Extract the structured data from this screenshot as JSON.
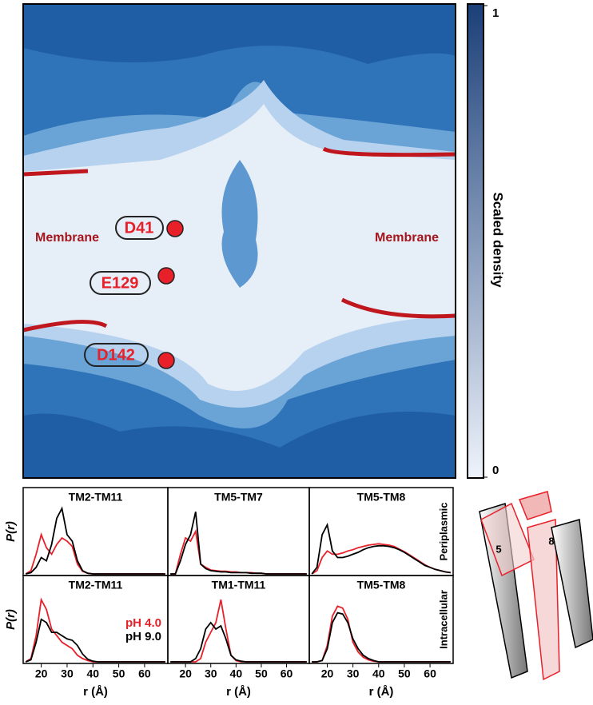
{
  "chart_data": [
    {
      "type": "heatmap",
      "annotations": [
        "Membrane",
        "Membrane",
        "D41",
        "E129",
        "D142"
      ],
      "colorbar": {
        "label": "Scaled density",
        "ylim": [
          0,
          1
        ],
        "yticks": [
          0,
          1
        ],
        "colors": [
          "#eef3fb",
          "#1b3f78"
        ]
      }
    },
    {
      "type": "line",
      "title": "TM2-TM11",
      "ylabel": "P(r)",
      "x": [
        14,
        16,
        18,
        20,
        22,
        24,
        26,
        28,
        30,
        32,
        34,
        36,
        38,
        40,
        42,
        44,
        46,
        48,
        50,
        52,
        54,
        56,
        58,
        60,
        62,
        64,
        66,
        68
      ],
      "xlim": [
        13,
        69
      ],
      "ylim": [
        0,
        1.05
      ],
      "series": [
        {
          "color": "#e8202a",
          "values": [
            0,
            0.05,
            0.3,
            0.6,
            0.4,
            0.3,
            0.45,
            0.55,
            0.5,
            0.42,
            0.15,
            0.04,
            0.01,
            0,
            0,
            0,
            0,
            0,
            0,
            0,
            0,
            0,
            0,
            0,
            0,
            0,
            0,
            0
          ]
        },
        {
          "color": "#000000",
          "values": [
            0,
            0.02,
            0.1,
            0.25,
            0.2,
            0.45,
            0.85,
            1.0,
            0.6,
            0.5,
            0.2,
            0.05,
            0.01,
            0,
            0,
            0,
            0,
            0,
            0,
            0,
            0,
            0,
            0,
            0,
            0,
            0,
            0,
            0
          ]
        }
      ]
    },
    {
      "type": "line",
      "title": "TM5-TM7",
      "x": [
        14,
        16,
        18,
        20,
        22,
        24,
        26,
        28,
        30,
        32,
        34,
        36,
        38,
        40,
        42,
        44,
        46,
        48,
        50,
        52,
        54,
        56,
        58,
        60,
        62,
        64,
        66,
        68
      ],
      "xlim": [
        13,
        69
      ],
      "ylim": [
        0,
        1.05
      ],
      "series": [
        {
          "color": "#e8202a",
          "values": [
            0,
            0,
            0.3,
            0.55,
            0.5,
            0.65,
            0.15,
            0.1,
            0.06,
            0.05,
            0.04,
            0.04,
            0.03,
            0.03,
            0.02,
            0.02,
            0.02,
            0.01,
            0.01,
            0,
            0,
            0,
            0,
            0,
            0,
            0,
            0,
            0
          ]
        },
        {
          "color": "#000000",
          "values": [
            0,
            0,
            0.2,
            0.45,
            0.6,
            0.95,
            0.15,
            0.08,
            0.05,
            0.04,
            0.03,
            0.03,
            0.02,
            0.02,
            0.02,
            0.02,
            0.01,
            0.01,
            0.01,
            0,
            0,
            0,
            0,
            0,
            0,
            0,
            0,
            0
          ]
        }
      ]
    },
    {
      "type": "line",
      "title": "TM5-TM8",
      "side_label": "Periplasmic",
      "x": [
        14,
        16,
        18,
        20,
        22,
        24,
        26,
        28,
        30,
        32,
        34,
        36,
        38,
        40,
        42,
        44,
        46,
        48,
        50,
        52,
        54,
        56,
        58,
        60,
        62,
        64,
        66,
        68
      ],
      "xlim": [
        13,
        69
      ],
      "ylim": [
        0,
        1.05
      ],
      "series": [
        {
          "color": "#e8202a",
          "values": [
            0,
            0.05,
            0.25,
            0.35,
            0.3,
            0.3,
            0.32,
            0.35,
            0.37,
            0.4,
            0.42,
            0.44,
            0.45,
            0.46,
            0.45,
            0.44,
            0.42,
            0.38,
            0.34,
            0.29,
            0.24,
            0.19,
            0.14,
            0.1,
            0.07,
            0.05,
            0.03,
            0.02
          ]
        },
        {
          "color": "#000000",
          "values": [
            0,
            0.1,
            0.6,
            0.75,
            0.35,
            0.25,
            0.25,
            0.27,
            0.3,
            0.33,
            0.37,
            0.4,
            0.42,
            0.43,
            0.43,
            0.42,
            0.4,
            0.37,
            0.33,
            0.28,
            0.23,
            0.18,
            0.13,
            0.1,
            0.07,
            0.05,
            0.03,
            0.02
          ]
        }
      ]
    },
    {
      "type": "line",
      "title": "TM2-TM11",
      "ylabel": "P(r)",
      "xlabel": "r (Å)",
      "x": [
        14,
        16,
        18,
        20,
        22,
        24,
        26,
        28,
        30,
        32,
        34,
        36,
        38,
        40,
        42,
        44,
        46,
        48,
        50,
        52,
        54,
        56,
        58,
        60,
        62,
        64,
        66,
        68
      ],
      "xlim": [
        13,
        69
      ],
      "ylim": [
        0,
        1.05
      ],
      "xticks": [
        20,
        30,
        40,
        50,
        60
      ],
      "series": [
        {
          "name": "pH 4.0",
          "color": "#e8202a",
          "values": [
            0,
            0.05,
            0.4,
            0.95,
            0.8,
            0.5,
            0.4,
            0.3,
            0.25,
            0.2,
            0.1,
            0.05,
            0.02,
            0,
            0,
            0,
            0,
            0,
            0,
            0,
            0,
            0,
            0,
            0,
            0,
            0,
            0,
            0
          ]
        },
        {
          "name": "pH 9.0",
          "color": "#000000",
          "values": [
            0,
            0.03,
            0.3,
            0.65,
            0.6,
            0.45,
            0.45,
            0.4,
            0.35,
            0.33,
            0.25,
            0.12,
            0.04,
            0.01,
            0,
            0,
            0,
            0,
            0,
            0,
            0,
            0,
            0,
            0,
            0,
            0,
            0,
            0
          ]
        }
      ]
    },
    {
      "type": "line",
      "title": "TM1-TM11",
      "xlabel": "r (Å)",
      "x": [
        14,
        16,
        18,
        20,
        22,
        24,
        26,
        28,
        30,
        32,
        34,
        36,
        38,
        40,
        42,
        44,
        46,
        48,
        50,
        52,
        54,
        56,
        58,
        60,
        62,
        64,
        66,
        68
      ],
      "xlim": [
        13,
        69
      ],
      "ylim": [
        0,
        1.05
      ],
      "xticks": [
        20,
        30,
        40,
        50,
        60
      ],
      "series": [
        {
          "color": "#e8202a",
          "values": [
            0,
            0,
            0,
            0,
            0,
            0,
            0.05,
            0.3,
            0.45,
            0.6,
            0.95,
            0.5,
            0.1,
            0.02,
            0,
            0,
            0,
            0,
            0,
            0,
            0,
            0,
            0,
            0,
            0,
            0,
            0,
            0
          ]
        },
        {
          "color": "#000000",
          "values": [
            0,
            0,
            0,
            0,
            0,
            0.05,
            0.2,
            0.5,
            0.6,
            0.5,
            0.55,
            0.35,
            0.1,
            0.03,
            0.01,
            0,
            0,
            0,
            0,
            0,
            0,
            0,
            0,
            0,
            0,
            0,
            0,
            0
          ]
        }
      ]
    },
    {
      "type": "line",
      "title": "TM5-TM8",
      "side_label": "Intracellular",
      "xlabel": "r (Å)",
      "x": [
        14,
        16,
        18,
        20,
        22,
        24,
        26,
        28,
        30,
        32,
        34,
        36,
        38,
        40,
        42,
        44,
        46,
        48,
        50,
        52,
        54,
        56,
        58,
        60,
        62,
        64,
        66,
        68
      ],
      "xlim": [
        13,
        69
      ],
      "ylim": [
        0,
        1.05
      ],
      "xticks": [
        20,
        30,
        40,
        50,
        60
      ],
      "series": [
        {
          "color": "#e8202a",
          "values": [
            0,
            0,
            0.02,
            0.25,
            0.7,
            0.85,
            0.82,
            0.65,
            0.3,
            0.15,
            0.07,
            0.03,
            0.01,
            0,
            0,
            0,
            0,
            0,
            0,
            0,
            0,
            0,
            0,
            0,
            0,
            0,
            0,
            0
          ]
        },
        {
          "color": "#000000",
          "values": [
            0,
            0,
            0.02,
            0.2,
            0.6,
            0.75,
            0.73,
            0.6,
            0.35,
            0.2,
            0.1,
            0.05,
            0.02,
            0,
            0,
            0,
            0,
            0,
            0,
            0,
            0,
            0,
            0,
            0,
            0,
            0,
            0,
            0
          ]
        }
      ]
    }
  ],
  "cartoon": {
    "labels": [
      "5",
      "8"
    ]
  }
}
